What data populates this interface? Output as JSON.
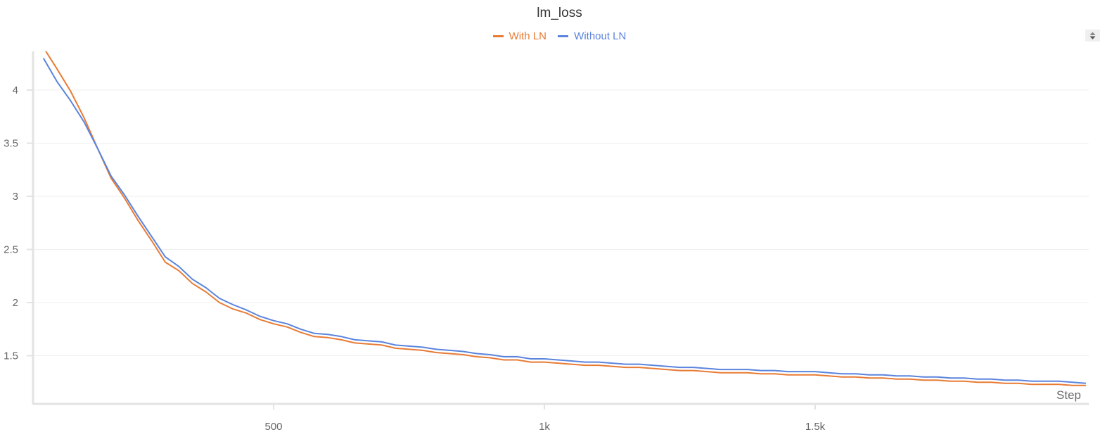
{
  "chart_data": {
    "type": "line",
    "title": "lm_loss",
    "xlabel": "Step",
    "ylabel": "",
    "xlim": [
      56,
      2006
    ],
    "ylim": [
      1.05,
      4.36
    ],
    "grid": true,
    "legend_position": "top-center",
    "x_ticks": [
      500,
      1000,
      1500
    ],
    "x_tick_labels": [
      "500",
      "1k",
      "1.5k"
    ],
    "y_ticks": [
      1.5,
      2,
      2.5,
      3,
      3.5,
      4
    ],
    "y_tick_labels": [
      "1.5",
      "2",
      "2.5",
      "3",
      "3.5",
      "4"
    ],
    "x": [
      75,
      100,
      125,
      150,
      175,
      200,
      225,
      250,
      275,
      300,
      325,
      350,
      375,
      400,
      425,
      450,
      475,
      500,
      525,
      550,
      575,
      600,
      625,
      650,
      675,
      700,
      725,
      750,
      775,
      800,
      825,
      850,
      875,
      900,
      925,
      950,
      975,
      1000,
      1025,
      1050,
      1075,
      1100,
      1125,
      1150,
      1175,
      1200,
      1225,
      1250,
      1275,
      1300,
      1325,
      1350,
      1375,
      1400,
      1425,
      1450,
      1475,
      1500,
      1525,
      1550,
      1575,
      1600,
      1625,
      1650,
      1675,
      1700,
      1725,
      1750,
      1775,
      1800,
      1825,
      1850,
      1875,
      1900,
      1925,
      1950,
      1975,
      2000
    ],
    "series": [
      {
        "name": "With LN",
        "color": "#e87b35",
        "values": [
          4.4,
          4.2,
          3.99,
          3.74,
          3.45,
          3.17,
          2.98,
          2.77,
          2.58,
          2.38,
          2.3,
          2.18,
          2.1,
          2.0,
          1.94,
          1.9,
          1.84,
          1.8,
          1.77,
          1.72,
          1.68,
          1.67,
          1.65,
          1.62,
          1.61,
          1.6,
          1.57,
          1.56,
          1.55,
          1.53,
          1.52,
          1.51,
          1.49,
          1.48,
          1.46,
          1.46,
          1.44,
          1.44,
          1.43,
          1.42,
          1.41,
          1.41,
          1.4,
          1.39,
          1.39,
          1.38,
          1.37,
          1.36,
          1.36,
          1.35,
          1.34,
          1.34,
          1.34,
          1.33,
          1.33,
          1.32,
          1.32,
          1.32,
          1.31,
          1.3,
          1.3,
          1.29,
          1.29,
          1.28,
          1.28,
          1.27,
          1.27,
          1.26,
          1.26,
          1.25,
          1.25,
          1.24,
          1.24,
          1.23,
          1.23,
          1.23,
          1.22,
          1.22
        ]
      },
      {
        "name": "Without LN",
        "color": "#5b84dd",
        "values": [
          4.3,
          4.08,
          3.9,
          3.7,
          3.45,
          3.19,
          3.01,
          2.81,
          2.62,
          2.43,
          2.34,
          2.22,
          2.14,
          2.04,
          1.98,
          1.93,
          1.87,
          1.83,
          1.8,
          1.75,
          1.71,
          1.7,
          1.68,
          1.65,
          1.64,
          1.63,
          1.6,
          1.59,
          1.58,
          1.56,
          1.55,
          1.54,
          1.52,
          1.51,
          1.49,
          1.49,
          1.47,
          1.47,
          1.46,
          1.45,
          1.44,
          1.44,
          1.43,
          1.42,
          1.42,
          1.41,
          1.4,
          1.39,
          1.39,
          1.38,
          1.37,
          1.37,
          1.37,
          1.36,
          1.36,
          1.35,
          1.35,
          1.35,
          1.34,
          1.33,
          1.33,
          1.32,
          1.32,
          1.31,
          1.31,
          1.3,
          1.3,
          1.29,
          1.29,
          1.28,
          1.28,
          1.27,
          1.27,
          1.26,
          1.26,
          1.26,
          1.25,
          1.24
        ]
      }
    ]
  },
  "controls": {
    "toggle_icon": "sort-arrows-icon"
  }
}
